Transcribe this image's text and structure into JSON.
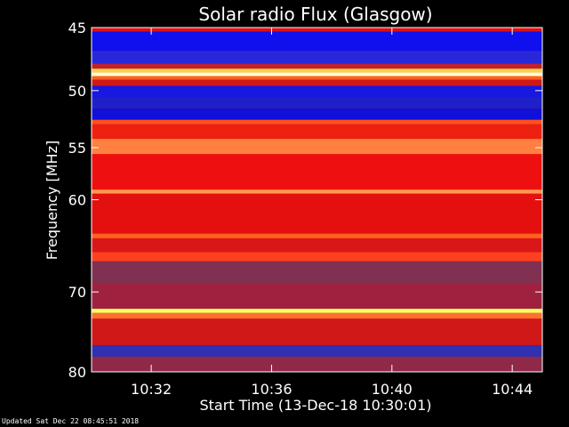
{
  "chart_data": {
    "type": "heatmap",
    "title": "Solar radio Flux (Glasgow)",
    "xlabel": "Start Time (13-Dec-18 10:30:01)",
    "ylabel": "Frequency [MHz]",
    "x_range": [
      "10:30:01",
      "10:45:00"
    ],
    "x_ticks": [
      "10:32",
      "10:36",
      "10:40",
      "10:44"
    ],
    "y_range": [
      45,
      80
    ],
    "y_ticks": [
      45,
      50,
      55,
      60,
      70,
      80
    ],
    "y_scale": "log",
    "colormap": [
      "#000070",
      "#0000ff",
      "#ff0000",
      "#ffff00",
      "#ffffff"
    ],
    "bands": [
      {
        "mhz": [
          45.0,
          45.3
        ],
        "color": "#e01010"
      },
      {
        "mhz": [
          45.3,
          46.8
        ],
        "color": "#1010ee"
      },
      {
        "mhz": [
          46.8,
          47.8
        ],
        "color": "#2828d8"
      },
      {
        "mhz": [
          47.8,
          48.2
        ],
        "color": "#c02030"
      },
      {
        "mhz": [
          48.2,
          48.5
        ],
        "color": "#ffd040"
      },
      {
        "mhz": [
          48.5,
          48.8
        ],
        "color": "#ffffd0"
      },
      {
        "mhz": [
          48.8,
          49.1
        ],
        "color": "#ff6020"
      },
      {
        "mhz": [
          49.1,
          49.6
        ],
        "color": "#d01818"
      },
      {
        "mhz": [
          49.6,
          50.6
        ],
        "color": "#1818e0"
      },
      {
        "mhz": [
          50.6,
          51.5
        ],
        "color": "#2020c8"
      },
      {
        "mhz": [
          51.5,
          52.5
        ],
        "color": "#1010d8"
      },
      {
        "mhz": [
          52.5,
          52.9
        ],
        "color": "#ff5020"
      },
      {
        "mhz": [
          52.9,
          54.2
        ],
        "color": "#ee2010"
      },
      {
        "mhz": [
          54.2,
          55.6
        ],
        "color": "#ff8040"
      },
      {
        "mhz": [
          55.6,
          59.0
        ],
        "color": "#ee1010"
      },
      {
        "mhz": [
          59.0,
          59.4
        ],
        "color": "#ff9a50"
      },
      {
        "mhz": [
          59.4,
          63.5
        ],
        "color": "#e41010"
      },
      {
        "mhz": [
          63.5,
          64.0
        ],
        "color": "#ff6020"
      },
      {
        "mhz": [
          64.0,
          65.5
        ],
        "color": "#d81818"
      },
      {
        "mhz": [
          65.5,
          66.5
        ],
        "color": "#ff4020"
      },
      {
        "mhz": [
          66.5,
          69.0
        ],
        "color": "#803050"
      },
      {
        "mhz": [
          69.0,
          72.0
        ],
        "color": "#a02040"
      },
      {
        "mhz": [
          72.0,
          72.5
        ],
        "color": "#ffff60"
      },
      {
        "mhz": [
          72.5,
          73.2
        ],
        "color": "#ff7030"
      },
      {
        "mhz": [
          73.2,
          76.5
        ],
        "color": "#d01818"
      },
      {
        "mhz": [
          76.5,
          78.0
        ],
        "color": "#3030b0"
      },
      {
        "mhz": [
          78.0,
          80.0
        ],
        "color": "#902848"
      }
    ],
    "grid": false
  },
  "footer": "Updated Sat Dec 22 08:45:51 2018"
}
